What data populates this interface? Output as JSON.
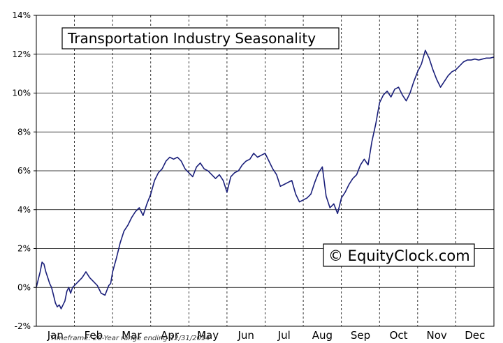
{
  "chart_data": {
    "type": "line",
    "title": "Transportation Industry Seasonality",
    "watermark": "© EquityClock.com",
    "footnote": "Timeframe: 20-Year range ending 12/31/2014",
    "xlabel": "",
    "ylabel": "",
    "ylim": [
      -2,
      14
    ],
    "yticks": [
      -2,
      0,
      2,
      4,
      6,
      8,
      10,
      12,
      14
    ],
    "ytick_labels": [
      "-2%",
      "0%",
      "2%",
      "4%",
      "6%",
      "8%",
      "10%",
      "12%",
      "14%"
    ],
    "xlim": [
      0,
      12
    ],
    "categories": [
      "Jan",
      "Feb",
      "Mar",
      "Apr",
      "May",
      "Jun",
      "Jul",
      "Aug",
      "Sep",
      "Oct",
      "Nov",
      "Dec"
    ],
    "grid": {
      "horizontal": "solid",
      "vertical": "dashed"
    },
    "line_color": "#1a1f7a",
    "series": [
      {
        "x": [
          0,
          0.05,
          0.1,
          0.15,
          0.2,
          0.25,
          0.3,
          0.35,
          0.4,
          0.45,
          0.5,
          0.55,
          0.6,
          0.65,
          0.7,
          0.75,
          0.8,
          0.85,
          0.9,
          0.95,
          1.0,
          1.1,
          1.2,
          1.3,
          1.4,
          1.5,
          1.6,
          1.7,
          1.8,
          1.9,
          1.95,
          2.0,
          2.1,
          2.2,
          2.3,
          2.4,
          2.5,
          2.6,
          2.7,
          2.8,
          2.9,
          3.0,
          3.1,
          3.2,
          3.3,
          3.4,
          3.5,
          3.6,
          3.7,
          3.8,
          3.9,
          4.0,
          4.1,
          4.2,
          4.3,
          4.4,
          4.5,
          4.6,
          4.7,
          4.8,
          4.9,
          5.0,
          5.1,
          5.2,
          5.3,
          5.4,
          5.5,
          5.6,
          5.7,
          5.8,
          5.9,
          6.0,
          6.1,
          6.2,
          6.3,
          6.4,
          6.5,
          6.6,
          6.7,
          6.8,
          6.9,
          7.0,
          7.1,
          7.2,
          7.3,
          7.4,
          7.5,
          7.6,
          7.7,
          7.8,
          7.9,
          8.0,
          8.1,
          8.2,
          8.3,
          8.4,
          8.5,
          8.6,
          8.7,
          8.8,
          8.9,
          9.0,
          9.1,
          9.2,
          9.3,
          9.4,
          9.5,
          9.6,
          9.7,
          9.8,
          9.9,
          10.0,
          10.1,
          10.2,
          10.3,
          10.4,
          10.5,
          10.6,
          10.7,
          10.8,
          10.9,
          11.0,
          11.1,
          11.2,
          11.3,
          11.4,
          11.5,
          11.6,
          11.7,
          11.8,
          11.9,
          12.0
        ],
        "values": [
          0,
          0.4,
          0.8,
          1.3,
          1.2,
          0.8,
          0.5,
          0.2,
          0,
          -0.4,
          -0.8,
          -1.0,
          -0.9,
          -1.1,
          -0.9,
          -0.7,
          -0.2,
          0,
          -0.3,
          0,
          0.1,
          0.3,
          0.5,
          0.8,
          0.5,
          0.3,
          0.1,
          -0.3,
          -0.4,
          0.1,
          0.2,
          0.8,
          1.5,
          2.3,
          2.9,
          3.2,
          3.6,
          3.9,
          4.1,
          3.7,
          4.3,
          4.8,
          5.5,
          5.9,
          6.1,
          6.5,
          6.7,
          6.6,
          6.7,
          6.5,
          6.1,
          5.9,
          5.7,
          6.2,
          6.4,
          6.1,
          6.0,
          5.8,
          5.6,
          5.8,
          5.5,
          4.9,
          5.7,
          5.9,
          6.0,
          6.3,
          6.5,
          6.6,
          6.9,
          6.7,
          6.8,
          6.9,
          6.5,
          6.1,
          5.8,
          5.2,
          5.3,
          5.4,
          5.5,
          4.8,
          4.4,
          4.5,
          4.6,
          4.8,
          5.4,
          5.9,
          6.2,
          4.7,
          4.1,
          4.3,
          3.8,
          4.6,
          4.9,
          5.3,
          5.6,
          5.8,
          6.3,
          6.6,
          6.3,
          7.5,
          8.4,
          9.5,
          9.9,
          10.1,
          9.8,
          10.2,
          10.3,
          9.9,
          9.6,
          10.0,
          10.6,
          11.1,
          11.5,
          12.2,
          11.8,
          11.2,
          10.7,
          10.3,
          10.6,
          10.9,
          11.1,
          11.2,
          11.4,
          11.6,
          11.7,
          11.7,
          11.75,
          11.7,
          11.75,
          11.8,
          11.8,
          11.85
        ]
      }
    ]
  }
}
